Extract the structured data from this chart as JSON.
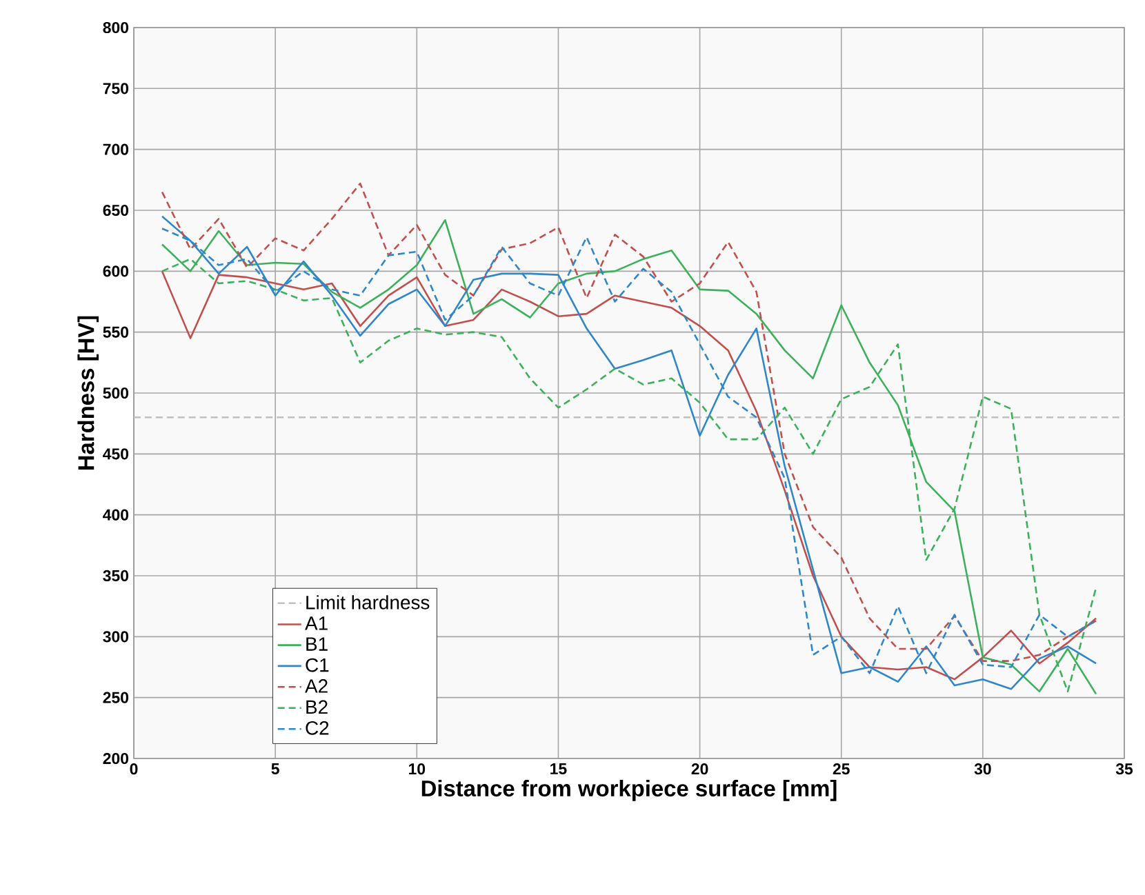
{
  "chart_data": {
    "type": "line",
    "xlabel": "Distance from workpiece surface [mm]",
    "ylabel": "Hardness [HV]",
    "x": [
      1,
      2,
      3,
      4,
      5,
      6,
      7,
      8,
      9,
      10,
      11,
      12,
      13,
      14,
      15,
      16,
      17,
      18,
      19,
      20,
      21,
      22,
      23,
      24,
      25,
      26,
      27,
      28,
      29,
      30,
      31,
      32,
      33,
      34
    ],
    "series": [
      {
        "name": "A1",
        "color": "#c0504d",
        "line_style": "solid",
        "values": [
          600,
          545,
          597,
          595,
          590,
          585,
          590,
          555,
          580,
          595,
          555,
          560,
          585,
          575,
          563,
          565,
          580,
          575,
          570,
          555,
          535,
          485,
          420,
          350,
          300,
          275,
          273,
          275,
          265,
          283,
          305,
          278,
          295,
          315
        ]
      },
      {
        "name": "B1",
        "color": "#3cb05a",
        "line_style": "solid",
        "values": [
          622,
          600,
          633,
          605,
          607,
          606,
          583,
          570,
          585,
          605,
          642,
          565,
          577,
          562,
          590,
          598,
          600,
          610,
          617,
          585,
          584,
          565,
          535,
          512,
          572,
          525,
          490,
          427,
          403,
          283,
          277,
          255,
          290,
          253
        ]
      },
      {
        "name": "C1",
        "color": "#2f86c8",
        "line_style": "solid",
        "values": [
          645,
          625,
          598,
          620,
          580,
          608,
          580,
          547,
          573,
          585,
          555,
          593,
          598,
          598,
          597,
          553,
          520,
          527,
          535,
          465,
          515,
          553,
          440,
          355,
          270,
          275,
          263,
          292,
          260,
          265,
          257,
          282,
          292,
          278
        ]
      },
      {
        "name": "A2",
        "color": "#c0504d",
        "line_style": "dashed",
        "values": [
          665,
          618,
          643,
          603,
          627,
          617,
          643,
          672,
          613,
          638,
          597,
          580,
          618,
          623,
          636,
          578,
          630,
          612,
          575,
          590,
          624,
          583,
          450,
          390,
          365,
          315,
          290,
          290,
          317,
          280,
          280,
          285,
          300,
          313
        ]
      },
      {
        "name": "B2",
        "color": "#3cb05a",
        "line_style": "dashed",
        "values": [
          600,
          610,
          590,
          592,
          585,
          576,
          578,
          525,
          543,
          553,
          548,
          550,
          546,
          512,
          488,
          503,
          520,
          507,
          512,
          492,
          462,
          462,
          488,
          450,
          495,
          505,
          540,
          363,
          405,
          497,
          487,
          318,
          255,
          340
        ]
      },
      {
        "name": "C2",
        "color": "#2f86c8",
        "line_style": "dashed",
        "values": [
          635,
          625,
          605,
          610,
          583,
          600,
          585,
          580,
          613,
          616,
          560,
          580,
          620,
          590,
          580,
          628,
          575,
          602,
          583,
          540,
          497,
          480,
          430,
          285,
          300,
          270,
          325,
          270,
          318,
          277,
          275,
          318,
          300,
          313
        ]
      }
    ],
    "ref_lines": [
      {
        "axis": "y",
        "value": 480,
        "label": "Limit hardness",
        "color": "#bfbfbf",
        "line_style": "dashed"
      }
    ],
    "xlim": [
      0,
      35
    ],
    "ylim": [
      200,
      800
    ],
    "xticks": [
      0,
      5,
      10,
      15,
      20,
      25,
      30,
      35
    ],
    "yticks": [
      200,
      250,
      300,
      350,
      400,
      450,
      500,
      550,
      600,
      650,
      700,
      750,
      800
    ],
    "grid": true,
    "legend": "bottom left",
    "marker": "none"
  }
}
